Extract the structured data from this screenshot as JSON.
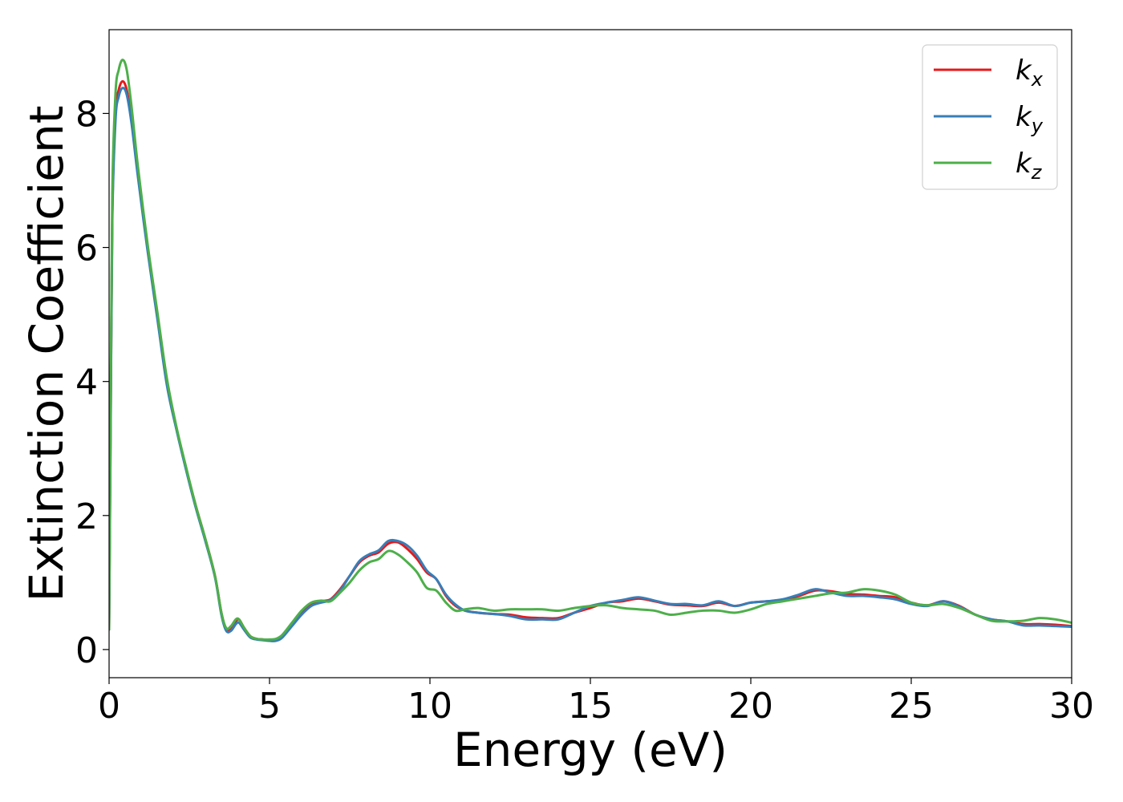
{
  "chart_data": {
    "type": "line",
    "title": "",
    "xlabel": "Energy (eV)",
    "ylabel": "Extinction Coefficient",
    "xlim": [
      0,
      30
    ],
    "ylim": [
      -0.42,
      9.25
    ],
    "xticks": [
      0,
      5,
      10,
      15,
      20,
      25,
      30
    ],
    "yticks": [
      0,
      2,
      4,
      6,
      8
    ],
    "grid": false,
    "legend_position": "top-right",
    "series": [
      {
        "name": "k",
        "subscript": "x",
        "color": "#e41a1c",
        "x": [
          0,
          0.05,
          0.1,
          0.2,
          0.3,
          0.42,
          0.55,
          0.7,
          0.9,
          1.2,
          1.5,
          1.8,
          2.1,
          2.4,
          2.7,
          3.0,
          3.3,
          3.5,
          3.65,
          3.8,
          3.95,
          4.05,
          4.2,
          4.4,
          4.6,
          4.8,
          5.0,
          5.2,
          5.4,
          5.7,
          6.0,
          6.3,
          6.6,
          6.9,
          7.2,
          7.5,
          7.8,
          8.1,
          8.4,
          8.7,
          9.0,
          9.3,
          9.6,
          9.9,
          10.2,
          10.5,
          10.8,
          11.1,
          11.5,
          12.0,
          12.5,
          13.0,
          13.5,
          14.0,
          14.5,
          15.0,
          15.5,
          16.0,
          16.5,
          17.0,
          17.5,
          18.0,
          18.5,
          19.0,
          19.5,
          20.0,
          20.5,
          21.0,
          21.5,
          22.0,
          22.5,
          23.0,
          23.5,
          24.0,
          24.5,
          25.0,
          25.5,
          26.0,
          26.5,
          27.0,
          27.5,
          28.0,
          28.5,
          29.0,
          29.5,
          30.0
        ],
        "y": [
          0.3,
          3.5,
          6.5,
          8.0,
          8.35,
          8.48,
          8.35,
          7.9,
          7.1,
          6.0,
          5.0,
          4.0,
          3.3,
          2.7,
          2.15,
          1.65,
          1.1,
          0.55,
          0.3,
          0.3,
          0.42,
          0.45,
          0.33,
          0.2,
          0.16,
          0.15,
          0.14,
          0.14,
          0.2,
          0.38,
          0.55,
          0.67,
          0.72,
          0.75,
          0.9,
          1.1,
          1.3,
          1.4,
          1.45,
          1.58,
          1.6,
          1.5,
          1.35,
          1.15,
          1.05,
          0.8,
          0.65,
          0.58,
          0.55,
          0.53,
          0.52,
          0.48,
          0.47,
          0.47,
          0.55,
          0.62,
          0.7,
          0.72,
          0.76,
          0.72,
          0.67,
          0.66,
          0.65,
          0.7,
          0.65,
          0.7,
          0.72,
          0.74,
          0.8,
          0.88,
          0.87,
          0.83,
          0.82,
          0.8,
          0.78,
          0.7,
          0.66,
          0.72,
          0.65,
          0.52,
          0.45,
          0.42,
          0.38,
          0.38,
          0.37,
          0.35
        ]
      },
      {
        "name": "k",
        "subscript": "y",
        "color": "#377eb8",
        "x": [
          0,
          0.05,
          0.1,
          0.2,
          0.3,
          0.42,
          0.55,
          0.7,
          0.9,
          1.2,
          1.5,
          1.8,
          2.1,
          2.4,
          2.7,
          3.0,
          3.3,
          3.5,
          3.65,
          3.8,
          3.95,
          4.05,
          4.2,
          4.4,
          4.6,
          4.8,
          5.0,
          5.2,
          5.4,
          5.7,
          6.0,
          6.3,
          6.6,
          6.9,
          7.2,
          7.5,
          7.8,
          8.1,
          8.4,
          8.7,
          9.0,
          9.3,
          9.6,
          9.9,
          10.2,
          10.5,
          10.8,
          11.1,
          11.5,
          12.0,
          12.5,
          13.0,
          13.5,
          14.0,
          14.5,
          15.0,
          15.5,
          16.0,
          16.5,
          17.0,
          17.5,
          18.0,
          18.5,
          19.0,
          19.5,
          20.0,
          20.5,
          21.0,
          21.5,
          22.0,
          22.5,
          23.0,
          23.5,
          24.0,
          24.5,
          25.0,
          25.5,
          26.0,
          26.5,
          27.0,
          27.5,
          28.0,
          28.5,
          29.0,
          29.5,
          30.0
        ],
        "y": [
          0.3,
          3.4,
          6.4,
          7.9,
          8.25,
          8.38,
          8.28,
          7.85,
          7.05,
          5.95,
          4.95,
          3.95,
          3.28,
          2.68,
          2.12,
          1.62,
          1.08,
          0.52,
          0.28,
          0.28,
          0.38,
          0.4,
          0.3,
          0.18,
          0.15,
          0.14,
          0.13,
          0.13,
          0.18,
          0.35,
          0.52,
          0.65,
          0.7,
          0.74,
          0.88,
          1.1,
          1.32,
          1.42,
          1.48,
          1.62,
          1.62,
          1.55,
          1.4,
          1.18,
          1.05,
          0.82,
          0.67,
          0.58,
          0.55,
          0.53,
          0.5,
          0.45,
          0.45,
          0.45,
          0.55,
          0.65,
          0.7,
          0.74,
          0.78,
          0.73,
          0.68,
          0.68,
          0.66,
          0.72,
          0.65,
          0.7,
          0.72,
          0.75,
          0.82,
          0.9,
          0.85,
          0.8,
          0.8,
          0.78,
          0.75,
          0.68,
          0.65,
          0.72,
          0.64,
          0.52,
          0.45,
          0.42,
          0.36,
          0.36,
          0.35,
          0.34
        ]
      },
      {
        "name": "k",
        "subscript": "z",
        "color": "#4daf4a",
        "x": [
          0,
          0.05,
          0.1,
          0.2,
          0.3,
          0.42,
          0.55,
          0.7,
          0.9,
          1.2,
          1.5,
          1.8,
          2.1,
          2.4,
          2.7,
          3.0,
          3.3,
          3.5,
          3.65,
          3.8,
          3.95,
          4.05,
          4.2,
          4.4,
          4.6,
          4.8,
          5.0,
          5.2,
          5.4,
          5.7,
          6.0,
          6.3,
          6.6,
          6.9,
          7.2,
          7.5,
          7.8,
          8.1,
          8.4,
          8.7,
          9.0,
          9.3,
          9.6,
          9.9,
          10.2,
          10.5,
          10.8,
          11.1,
          11.5,
          12.0,
          12.5,
          13.0,
          13.5,
          14.0,
          14.5,
          15.0,
          15.5,
          16.0,
          16.5,
          17.0,
          17.5,
          18.0,
          18.5,
          19.0,
          19.5,
          20.0,
          20.5,
          21.0,
          21.5,
          22.0,
          22.5,
          23.0,
          23.5,
          24.0,
          24.5,
          25.0,
          25.5,
          26.0,
          26.5,
          27.0,
          27.5,
          28.0,
          28.5,
          29.0,
          29.5,
          30.0
        ],
        "y": [
          0.3,
          3.8,
          6.8,
          8.3,
          8.65,
          8.8,
          8.65,
          8.1,
          7.2,
          6.05,
          5.05,
          4.05,
          3.32,
          2.72,
          2.15,
          1.65,
          1.1,
          0.55,
          0.32,
          0.35,
          0.45,
          0.45,
          0.33,
          0.2,
          0.16,
          0.15,
          0.15,
          0.16,
          0.22,
          0.4,
          0.58,
          0.7,
          0.73,
          0.72,
          0.85,
          1.0,
          1.18,
          1.3,
          1.35,
          1.47,
          1.42,
          1.3,
          1.15,
          0.92,
          0.88,
          0.7,
          0.58,
          0.6,
          0.62,
          0.58,
          0.6,
          0.6,
          0.6,
          0.58,
          0.62,
          0.65,
          0.66,
          0.62,
          0.6,
          0.58,
          0.52,
          0.55,
          0.58,
          0.58,
          0.55,
          0.6,
          0.68,
          0.72,
          0.76,
          0.8,
          0.84,
          0.85,
          0.9,
          0.88,
          0.82,
          0.7,
          0.66,
          0.68,
          0.62,
          0.52,
          0.43,
          0.42,
          0.43,
          0.47,
          0.45,
          0.4
        ]
      }
    ]
  }
}
